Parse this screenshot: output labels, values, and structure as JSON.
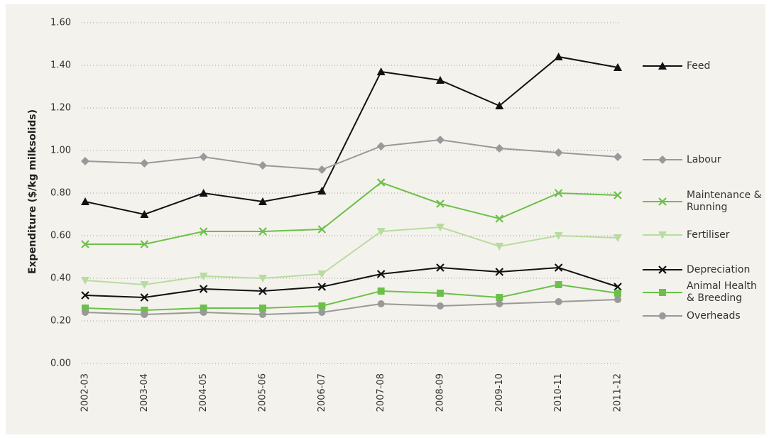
{
  "chart_data": {
    "type": "line",
    "y_label": "Expenditure ($/kg milksolids)",
    "categories": [
      "2002-03",
      "2003-04",
      "2004-05",
      "2005-06",
      "2006-07",
      "2007-08",
      "2008-09",
      "2009-10",
      "2010-11",
      "2011-12"
    ],
    "ylim": [
      0,
      1.6
    ],
    "yticks": [
      {
        "value": 0,
        "label": "0.00"
      },
      {
        "value": 0.2,
        "label": "0.20"
      },
      {
        "value": 0.4,
        "label": "0.40"
      },
      {
        "value": 0.6,
        "label": "0.60"
      },
      {
        "value": 0.8,
        "label": "0.80"
      },
      {
        "value": 1,
        "label": "1.00"
      },
      {
        "value": 1.2,
        "label": "1.20"
      },
      {
        "value": 1.4,
        "label": "1.40"
      },
      {
        "value": 1.6,
        "label": "1.60"
      }
    ],
    "grid": true,
    "series": [
      {
        "name": "Feed",
        "color": "#111111",
        "marker": "triangle-up",
        "values": [
          0.76,
          0.7,
          0.8,
          0.76,
          0.81,
          1.37,
          1.33,
          1.21,
          1.44,
          1.39
        ]
      },
      {
        "name": "Labour",
        "color": "#999999",
        "marker": "diamond",
        "values": [
          0.95,
          0.94,
          0.97,
          0.93,
          0.91,
          1.02,
          1.05,
          1.01,
          0.99,
          0.97
        ]
      },
      {
        "name": "Maintenance & Running",
        "color": "#6cc04a",
        "marker": "x",
        "values": [
          0.56,
          0.56,
          0.62,
          0.62,
          0.63,
          0.85,
          0.75,
          0.68,
          0.8,
          0.79
        ]
      },
      {
        "name": "Fertiliser",
        "color": "#b8dca0",
        "marker": "triangle-down",
        "values": [
          0.39,
          0.37,
          0.41,
          0.4,
          0.42,
          0.62,
          0.64,
          0.55,
          0.6,
          0.59
        ]
      },
      {
        "name": "Depreciation",
        "color": "#111111",
        "marker": "x",
        "values": [
          0.32,
          0.31,
          0.35,
          0.34,
          0.36,
          0.42,
          0.45,
          0.43,
          0.45,
          0.36
        ]
      },
      {
        "name": "Animal Health & Breeding",
        "color": "#6cc04a",
        "marker": "square",
        "values": [
          0.26,
          0.25,
          0.26,
          0.26,
          0.27,
          0.34,
          0.33,
          0.31,
          0.37,
          0.33
        ]
      },
      {
        "name": "Overheads",
        "color": "#999999",
        "marker": "circle",
        "values": [
          0.24,
          0.23,
          0.24,
          0.23,
          0.24,
          0.28,
          0.27,
          0.28,
          0.29,
          0.3
        ]
      }
    ]
  }
}
